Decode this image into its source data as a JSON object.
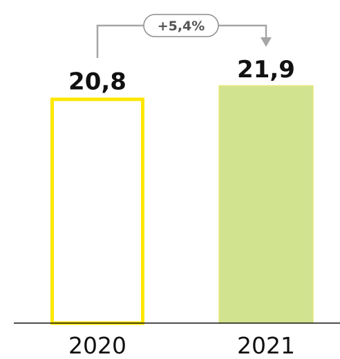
{
  "chart_data": {
    "type": "bar",
    "categories": [
      "2020",
      "2021"
    ],
    "values": [
      20.8,
      21.9
    ],
    "data_labels": [
      "20,8",
      "21,9"
    ],
    "annotation": "+5,4%",
    "title": "",
    "xlabel": "",
    "ylabel": "",
    "ylim": [
      0,
      22.8
    ],
    "grid": false,
    "legend": "none"
  },
  "colors": {
    "bar_2020_outline": "#fde700",
    "bar_2020_fill": "#ffffff",
    "bar_2021_fill": "#d2e38f",
    "bar_2021_outline": "#e6e97a",
    "axis": "#111111",
    "connector": "#a6a6a6",
    "pill_border": "#8c8c8c"
  }
}
